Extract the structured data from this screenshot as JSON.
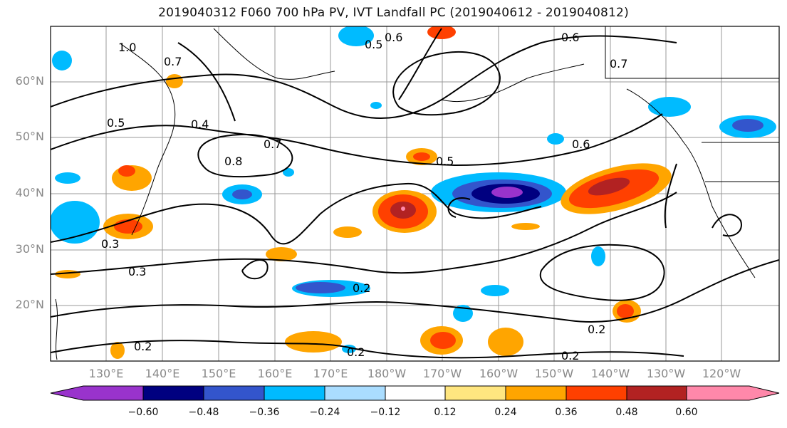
{
  "title": "2019040312 F060 700 hPa PV, IVT Landfall PC (2019040612 - 2019040812)",
  "lat_labels": [
    "60°N",
    "50°N",
    "40°N",
    "30°N",
    "20°N"
  ],
  "lon_labels": [
    "130°E",
    "140°E",
    "150°E",
    "160°E",
    "170°E",
    "180°W",
    "170°W",
    "160°W",
    "150°W",
    "140°W",
    "130°W",
    "120°W"
  ],
  "contour_labels": [
    "1.0",
    "0.8",
    "0.7",
    "0.6",
    "0.5",
    "0.4",
    "0.3",
    "0.2"
  ],
  "colorbar": {
    "colors": [
      "#9933cc",
      "#000080",
      "#3355cc",
      "#00bbff",
      "#aaddff",
      "#ffffff",
      "#ffe680",
      "#ffa500",
      "#ff4000",
      "#b22222",
      "#ff88aa"
    ],
    "ticks": [
      "−0.60",
      "−0.48",
      "−0.36",
      "−0.24",
      "−0.12",
      "0.12",
      "0.24",
      "0.36",
      "0.48",
      "0.60"
    ]
  }
}
